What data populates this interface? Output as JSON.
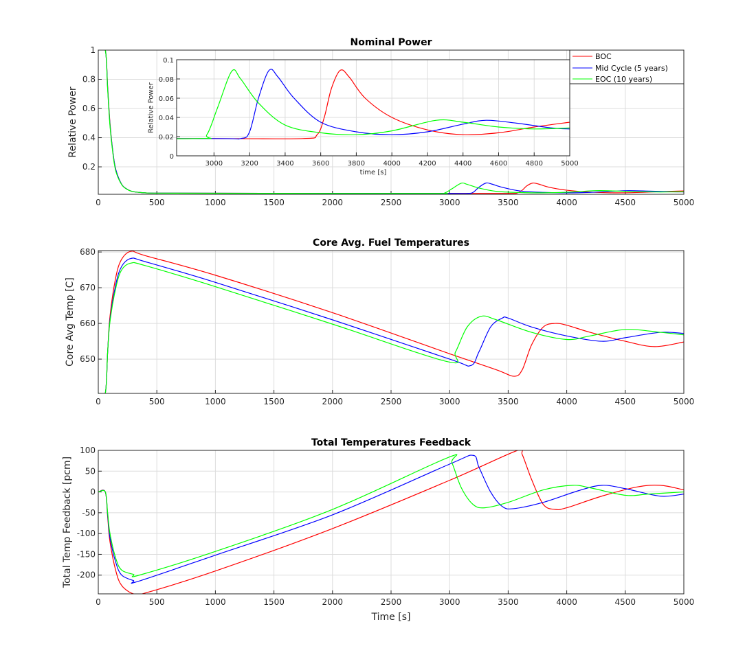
{
  "colors": {
    "BOC": "#ff0000",
    "Mid": "#0000ff",
    "EOC": "#00ff00",
    "grid": "#dcdcdc"
  },
  "legend": {
    "placement": "top-right",
    "entries": [
      "BOC",
      "Mid Cycle (5 years)",
      "EOC (10 years)"
    ]
  },
  "chart_data": [
    {
      "type": "line",
      "title": "Nominal Power",
      "xlabel": "",
      "ylabel": "Relative Power",
      "xlim": [
        0,
        5000
      ],
      "ylim": [
        0.012,
        1
      ],
      "xticks": [
        0,
        500,
        1000,
        1500,
        2000,
        2500,
        3000,
        3500,
        4000,
        4500,
        5000
      ],
      "yticks": [
        0.2,
        0.4,
        0.6,
        0.8,
        1
      ],
      "yticklabels": [
        "0.2",
        "0.4",
        "0.6",
        "0.8",
        "1"
      ],
      "grid": true,
      "series": [
        {
          "name": "BOC",
          "x": [
            0,
            60,
            80,
            100,
            125,
            150,
            200,
            250,
            300,
            400,
            500,
            1000,
            2000,
            3000,
            3500,
            3580,
            3620,
            3660,
            3710,
            3760,
            3850,
            4000,
            4200,
            4400,
            4600,
            4800,
            5000
          ],
          "y": [
            1,
            1,
            0.75,
            0.5,
            0.3,
            0.18,
            0.08,
            0.045,
            0.03,
            0.022,
            0.02,
            0.019,
            0.018,
            0.018,
            0.018,
            0.022,
            0.04,
            0.07,
            0.089,
            0.082,
            0.06,
            0.04,
            0.027,
            0.022,
            0.024,
            0.03,
            0.035
          ]
        },
        {
          "name": "Mid Cycle (5 years)",
          "x": [
            0,
            60,
            80,
            100,
            125,
            150,
            200,
            250,
            300,
            400,
            500,
            1000,
            2000,
            3000,
            3150,
            3200,
            3250,
            3310,
            3360,
            3450,
            3600,
            3800,
            4000,
            4200,
            4400,
            4530,
            4700,
            4900,
            5000
          ],
          "y": [
            1,
            1,
            0.74,
            0.49,
            0.3,
            0.18,
            0.08,
            0.045,
            0.03,
            0.022,
            0.02,
            0.019,
            0.018,
            0.018,
            0.018,
            0.025,
            0.06,
            0.089,
            0.082,
            0.06,
            0.035,
            0.025,
            0.022,
            0.025,
            0.033,
            0.037,
            0.034,
            0.029,
            0.028
          ]
        },
        {
          "name": "EOC (10 years)",
          "x": [
            0,
            60,
            80,
            100,
            125,
            150,
            200,
            250,
            300,
            400,
            500,
            1000,
            2000,
            2900,
            2960,
            3020,
            3100,
            3150,
            3250,
            3400,
            3600,
            3800,
            4000,
            4250,
            4400,
            4600,
            4800,
            5000
          ],
          "y": [
            1,
            1,
            0.73,
            0.48,
            0.29,
            0.17,
            0.078,
            0.044,
            0.03,
            0.022,
            0.02,
            0.019,
            0.018,
            0.018,
            0.022,
            0.05,
            0.088,
            0.08,
            0.055,
            0.032,
            0.024,
            0.022,
            0.026,
            0.037,
            0.035,
            0.03,
            0.028,
            0.029
          ]
        }
      ],
      "inset": {
        "xlabel": "time [s]",
        "ylabel": "Relative Power",
        "xlim": [
          2790,
          5000
        ],
        "ylim": [
          0,
          0.1
        ],
        "xticks": [
          3000,
          3200,
          3400,
          3600,
          3800,
          4000,
          4200,
          4400,
          4600,
          4800,
          5000
        ],
        "yticks": [
          0,
          0.02,
          0.04,
          0.06,
          0.08,
          0.1
        ],
        "yticklabels": [
          "0",
          "0.02",
          "0.04",
          "0.06",
          "0.08",
          "0.1"
        ]
      }
    },
    {
      "type": "line",
      "title": "Core Avg. Fuel Temperatures",
      "xlabel": "",
      "ylabel": "Core Avg Temp [C]",
      "xlim": [
        0,
        5000
      ],
      "ylim": [
        640.4,
        680.4
      ],
      "xticks": [
        0,
        500,
        1000,
        1500,
        2000,
        2500,
        3000,
        3500,
        4000,
        4500,
        5000
      ],
      "yticks": [
        650,
        660,
        670,
        680
      ],
      "yticklabels": [
        "650",
        "660",
        "670",
        "680"
      ],
      "grid": true,
      "series": [
        {
          "name": "BOC",
          "x": [
            0,
            60,
            80,
            100,
            150,
            200,
            280,
            400,
            1000,
            2000,
            3000,
            3400,
            3550,
            3620,
            3700,
            3800,
            3900,
            4000,
            4200,
            4500,
            4750,
            5000
          ],
          "y": [
            640.5,
            640.5,
            652,
            662,
            673,
            678,
            680.2,
            679,
            673.5,
            663,
            651.5,
            647,
            645.2,
            647,
            654,
            659,
            660,
            659.5,
            657.5,
            655,
            653.5,
            654.8
          ]
        },
        {
          "name": "Mid Cycle (5 years)",
          "x": [
            0,
            60,
            80,
            100,
            150,
            200,
            280,
            400,
            1000,
            2000,
            3000,
            3180,
            3250,
            3350,
            3450,
            3500,
            3700,
            4000,
            4300,
            4500,
            4800,
            5000
          ],
          "y": [
            640.5,
            640.5,
            652,
            661,
            671,
            676,
            678.2,
            677.3,
            671.5,
            661,
            650,
            648.2,
            652,
            659,
            661.5,
            661.5,
            659,
            656.5,
            655,
            656,
            657.5,
            657.2
          ]
        },
        {
          "name": "EOC (10 years)",
          "x": [
            0,
            60,
            80,
            100,
            150,
            200,
            280,
            400,
            1000,
            2000,
            2980,
            3050,
            3150,
            3270,
            3400,
            3700,
            4000,
            4200,
            4500,
            4800,
            5000
          ],
          "y": [
            640.5,
            640.5,
            652,
            660.5,
            670,
            675,
            676.9,
            676.2,
            670.3,
            659.8,
            649.3,
            652,
            659,
            662,
            661,
            657.5,
            655.5,
            656.5,
            658.3,
            657.5,
            656.8
          ]
        }
      ]
    },
    {
      "type": "line",
      "title": "Total Temperatures Feedback",
      "xlabel": "Time [s]",
      "ylabel": "Total Temp Feedback [pcm]",
      "xlim": [
        0,
        5000
      ],
      "ylim": [
        -245,
        100
      ],
      "xticks": [
        0,
        500,
        1000,
        1500,
        2000,
        2500,
        3000,
        3500,
        4000,
        4500,
        5000
      ],
      "yticks": [
        -200,
        -150,
        -100,
        -50,
        0,
        50,
        100
      ],
      "yticklabels": [
        "-200",
        "-150",
        "-100",
        "-50",
        "0",
        "50",
        "100"
      ],
      "grid": true,
      "series": [
        {
          "name": "BOC",
          "x": [
            0,
            60,
            80,
            100,
            150,
            200,
            300,
            400,
            1000,
            2000,
            3000,
            3580,
            3620,
            3700,
            3800,
            3900,
            4000,
            4300,
            4600,
            4800,
            5000
          ],
          "y": [
            0,
            0,
            -60,
            -120,
            -190,
            -225,
            -245,
            -243,
            -190,
            -88,
            28,
            100,
            90,
            30,
            -30,
            -42,
            -38,
            -10,
            12,
            16,
            5
          ]
        },
        {
          "name": "Mid Cycle (5 years)",
          "x": [
            0,
            60,
            80,
            100,
            150,
            200,
            300,
            340,
            1000,
            2000,
            3000,
            3200,
            3250,
            3350,
            3450,
            3550,
            3800,
            4100,
            4300,
            4500,
            4800,
            5000
          ],
          "y": [
            0,
            0,
            -55,
            -110,
            -170,
            -200,
            -213,
            -215,
            -152,
            -55,
            67,
            88,
            60,
            0,
            -35,
            -40,
            -25,
            3,
            16,
            8,
            -10,
            -5
          ]
        },
        {
          "name": "EOC (10 years)",
          "x": [
            0,
            60,
            80,
            100,
            150,
            200,
            300,
            350,
            1000,
            2000,
            2980,
            3020,
            3100,
            3200,
            3300,
            3500,
            3800,
            4050,
            4200,
            4500,
            4700,
            5000
          ],
          "y": [
            0,
            0,
            -50,
            -100,
            -160,
            -188,
            -198,
            -200,
            -143,
            -42,
            82,
            70,
            10,
            -30,
            -38,
            -25,
            5,
            16,
            10,
            -8,
            -5,
            0
          ]
        }
      ]
    }
  ]
}
